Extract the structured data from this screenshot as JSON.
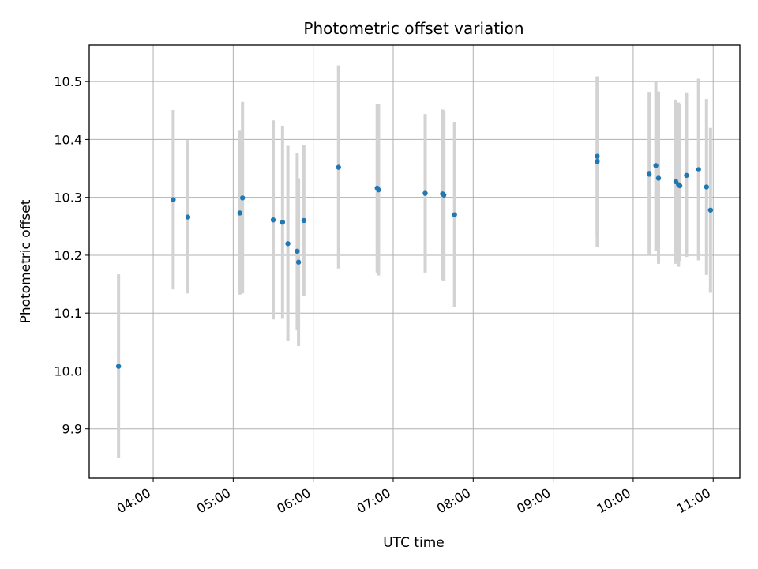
{
  "chart_data": {
    "type": "scatter",
    "title": "Photometric offset variation",
    "xlabel": "UTC time",
    "ylabel": "Photometric offset",
    "xlim": [
      "03:12",
      "11:20"
    ],
    "ylim": [
      9.815,
      10.563
    ],
    "x_ticks": [
      "04:00",
      "05:00",
      "06:00",
      "07:00",
      "08:00",
      "09:00",
      "10:00",
      "11:00"
    ],
    "y_ticks": [
      "9.9",
      "10.0",
      "10.1",
      "10.2",
      "10.3",
      "10.4",
      "10.5"
    ],
    "grid": true,
    "colors": {
      "point": "#1f77b4",
      "errorbar": "#d3d3d3",
      "grid": "#b0b0b0"
    },
    "points": [
      {
        "x": "03:34",
        "y": 10.008,
        "low": 9.85,
        "high": 10.167
      },
      {
        "x": "04:15",
        "y": 10.296,
        "low": 10.141,
        "high": 10.451
      },
      {
        "x": "04:26",
        "y": 10.266,
        "low": 10.134,
        "high": 10.399
      },
      {
        "x": "05:05",
        "y": 10.273,
        "low": 10.132,
        "high": 10.415
      },
      {
        "x": "05:07",
        "y": 10.299,
        "low": 10.134,
        "high": 10.465
      },
      {
        "x": "05:30",
        "y": 10.261,
        "low": 10.089,
        "high": 10.433
      },
      {
        "x": "05:37",
        "y": 10.257,
        "low": 10.09,
        "high": 10.423
      },
      {
        "x": "05:41",
        "y": 10.22,
        "low": 10.052,
        "high": 10.389
      },
      {
        "x": "05:48",
        "y": 10.207,
        "low": 10.07,
        "high": 10.376
      },
      {
        "x": "05:49",
        "y": 10.188,
        "low": 10.043,
        "high": 10.333
      },
      {
        "x": "05:53",
        "y": 10.26,
        "low": 10.13,
        "high": 10.39
      },
      {
        "x": "06:19",
        "y": 10.352,
        "low": 10.177,
        "high": 10.528
      },
      {
        "x": "06:48",
        "y": 10.316,
        "low": 10.17,
        "high": 10.462
      },
      {
        "x": "06:49",
        "y": 10.313,
        "low": 10.165,
        "high": 10.461
      },
      {
        "x": "07:24",
        "y": 10.307,
        "low": 10.17,
        "high": 10.444
      },
      {
        "x": "07:37",
        "y": 10.306,
        "low": 10.157,
        "high": 10.452
      },
      {
        "x": "07:38",
        "y": 10.304,
        "low": 10.156,
        "high": 10.45
      },
      {
        "x": "07:46",
        "y": 10.27,
        "low": 10.11,
        "high": 10.43
      },
      {
        "x": "09:33",
        "y": 10.371,
        "low": 10.233,
        "high": 10.509
      },
      {
        "x": "09:33",
        "y": 10.362,
        "low": 10.215,
        "high": 10.507
      },
      {
        "x": "10:12",
        "y": 10.34,
        "low": 10.2,
        "high": 10.481
      },
      {
        "x": "10:17",
        "y": 10.355,
        "low": 10.208,
        "high": 10.5
      },
      {
        "x": "10:19",
        "y": 10.333,
        "low": 10.185,
        "high": 10.483
      },
      {
        "x": "10:32",
        "y": 10.327,
        "low": 10.185,
        "high": 10.469
      },
      {
        "x": "10:34",
        "y": 10.322,
        "low": 10.18,
        "high": 10.464
      },
      {
        "x": "10:35",
        "y": 10.32,
        "low": 10.19,
        "high": 10.462
      },
      {
        "x": "10:40",
        "y": 10.338,
        "low": 10.197,
        "high": 10.48
      },
      {
        "x": "10:49",
        "y": 10.348,
        "low": 10.191,
        "high": 10.505
      },
      {
        "x": "10:55",
        "y": 10.318,
        "low": 10.166,
        "high": 10.47
      },
      {
        "x": "10:58",
        "y": 10.278,
        "low": 10.135,
        "high": 10.42
      }
    ]
  }
}
